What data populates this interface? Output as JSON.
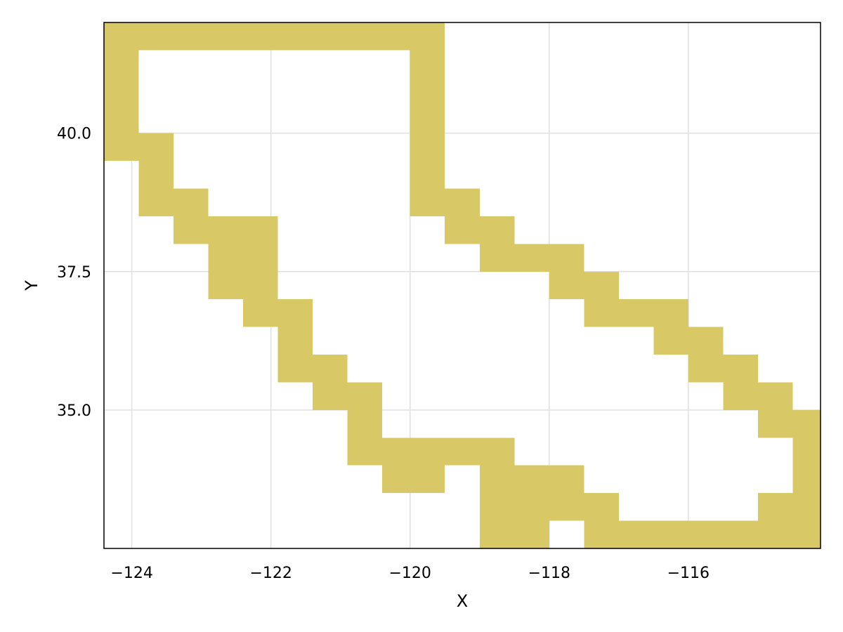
{
  "chart_data": {
    "type": "heatmap",
    "title": "",
    "xlabel": "X",
    "ylabel": "Y",
    "xlim": [
      -124.4,
      -114.1
    ],
    "ylim": [
      32.5,
      42.0
    ],
    "grid": true,
    "cell_size": 0.5,
    "fill_color": "#d9c966",
    "x_ticks": [
      -124,
      -122,
      -120,
      -118,
      -116
    ],
    "x_tick_labels": [
      "−124",
      "−122",
      "−120",
      "−118",
      "−116"
    ],
    "y_ticks": [
      35.0,
      37.5,
      40.0
    ],
    "y_tick_labels": [
      "35.0",
      "37.5",
      "40.0"
    ],
    "cells": [
      [
        -124.4,
        41.5,
        -119.5,
        42.0
      ],
      [
        -124.4,
        39.5,
        -123.9,
        41.5
      ],
      [
        -120.0,
        38.5,
        -119.5,
        41.5
      ],
      [
        -123.9,
        38.5,
        -123.4,
        40.0
      ],
      [
        -123.4,
        38.0,
        -122.9,
        39.0
      ],
      [
        -122.9,
        37.0,
        -121.9,
        38.5
      ],
      [
        -122.4,
        36.5,
        -121.9,
        37.0
      ],
      [
        -121.9,
        35.5,
        -121.4,
        37.0
      ],
      [
        -121.4,
        35.0,
        -120.9,
        36.0
      ],
      [
        -120.9,
        34.0,
        -120.4,
        35.5
      ],
      [
        -120.4,
        33.5,
        -119.5,
        34.5
      ],
      [
        -119.5,
        34.0,
        -119.0,
        34.5
      ],
      [
        -119.0,
        34.0,
        -118.5,
        34.5
      ],
      [
        -119.5,
        38.0,
        -119.0,
        39.0
      ],
      [
        -119.0,
        37.5,
        -118.5,
        38.5
      ],
      [
        -118.5,
        37.5,
        -118.0,
        38.0
      ],
      [
        -118.0,
        37.0,
        -117.5,
        38.0
      ],
      [
        -117.5,
        36.5,
        -117.0,
        37.5
      ],
      [
        -117.0,
        36.5,
        -116.5,
        37.0
      ],
      [
        -116.5,
        36.0,
        -116.0,
        37.0
      ],
      [
        -116.0,
        35.5,
        -115.5,
        36.5
      ],
      [
        -115.5,
        35.0,
        -115.0,
        36.0
      ],
      [
        -115.0,
        34.5,
        -114.5,
        35.5
      ],
      [
        -114.5,
        32.5,
        -114.1,
        35.0
      ],
      [
        -119.0,
        32.5,
        -118.0,
        34.0
      ],
      [
        -118.0,
        33.0,
        -117.5,
        34.0
      ],
      [
        -117.5,
        32.5,
        -117.0,
        33.5
      ],
      [
        -117.0,
        32.5,
        -115.0,
        33.0
      ],
      [
        -115.0,
        32.5,
        -114.5,
        33.5
      ]
    ]
  }
}
